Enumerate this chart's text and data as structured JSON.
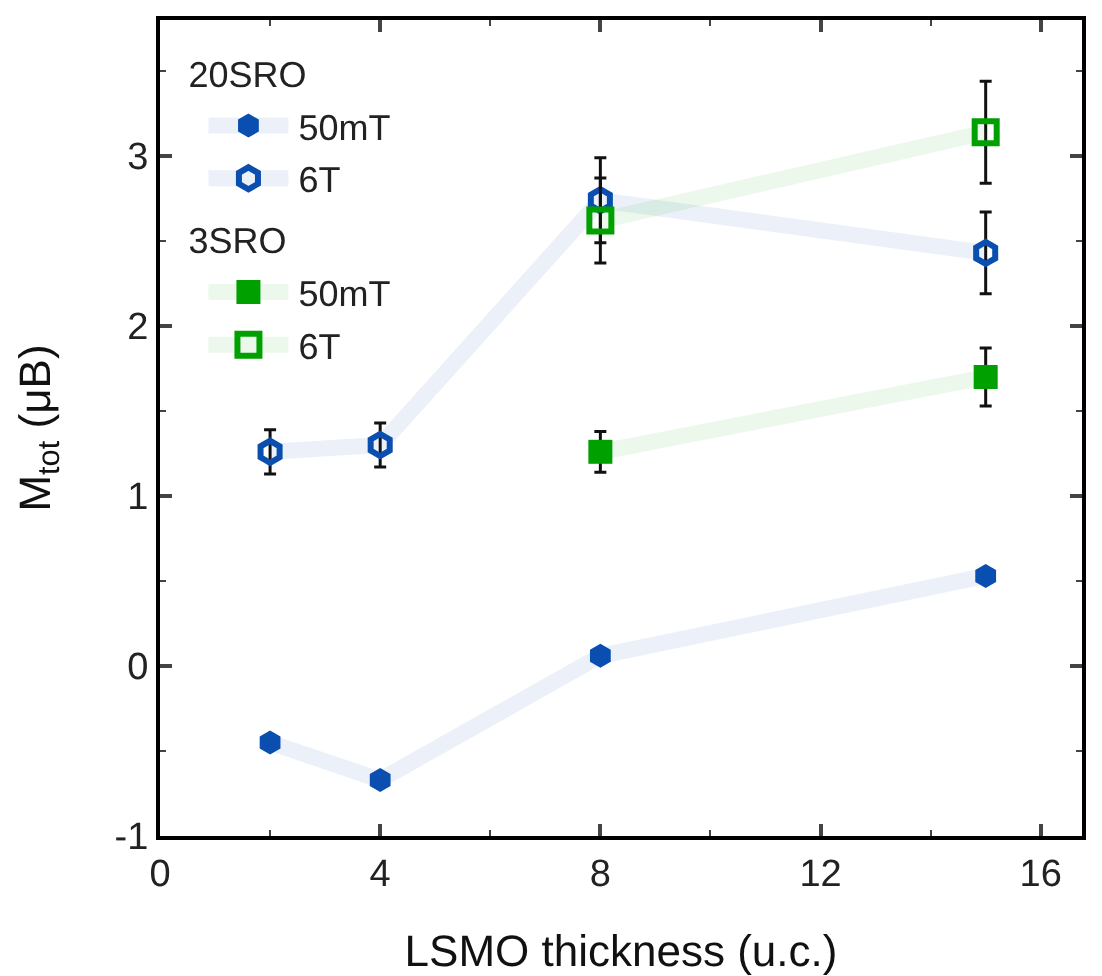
{
  "chart_data": {
    "type": "line",
    "xlabel": "LSMO thickness (u.c.)",
    "ylabel": "M$_{tot}$ (μB)",
    "xlim": [
      0,
      16.75
    ],
    "xticks": [
      0,
      4,
      8,
      12,
      16
    ],
    "ylim": [
      -1,
      3.8
    ],
    "yticks": [
      -1,
      0,
      1,
      2,
      3
    ],
    "grid": false,
    "legend": "top left",
    "annotations": [
      "20SRO",
      "3SRO"
    ],
    "series": [
      {
        "name": "50mT",
        "color": "#0a4fb0",
        "marker": "circle",
        "x": [
          2,
          4,
          8,
          15
        ],
        "values": [
          -0.45,
          -0.67,
          0.06,
          0.53
        ]
      },
      {
        "name": "6T",
        "color": "#0a4fb0",
        "marker": "circle-open",
        "x": [
          2,
          4,
          8,
          15
        ],
        "values": [
          1.26,
          1.3,
          2.74,
          2.43
        ],
        "errors": [
          0.13,
          0.13,
          0.25,
          0.24
        ]
      },
      {
        "name": "50mT",
        "color": "#00a000",
        "marker": "square",
        "x": [
          8,
          15
        ],
        "values": [
          1.26,
          1.7
        ],
        "errors": [
          0.12,
          0.17
        ]
      },
      {
        "name": "6T",
        "color": "#00a000",
        "marker": "square-open",
        "x": [
          8,
          15
        ],
        "values": [
          2.62,
          3.14
        ],
        "errors": [
          0.25,
          0.3
        ]
      }
    ]
  }
}
